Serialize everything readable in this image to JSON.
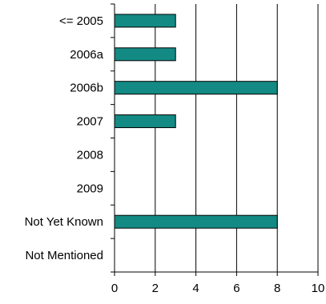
{
  "chart_data": {
    "type": "bar",
    "orientation": "horizontal",
    "categories": [
      "<= 2005",
      "2006a",
      "2006b",
      "2007",
      "2008",
      "2009",
      "Not Yet Known",
      "Not Mentioned"
    ],
    "values": [
      3,
      3,
      8,
      3,
      0,
      0,
      8,
      0
    ],
    "x_ticks": [
      0,
      2,
      4,
      6,
      8,
      10
    ],
    "xlim": [
      0,
      10
    ],
    "title": "",
    "xlabel": "",
    "ylabel": "",
    "grid": "vertical",
    "legend": "none",
    "colors": {
      "bar_fill": "#138a83",
      "bar_stroke": "#000000",
      "grid": "#000000",
      "axis": "#000000",
      "background": "#ffffff"
    }
  }
}
